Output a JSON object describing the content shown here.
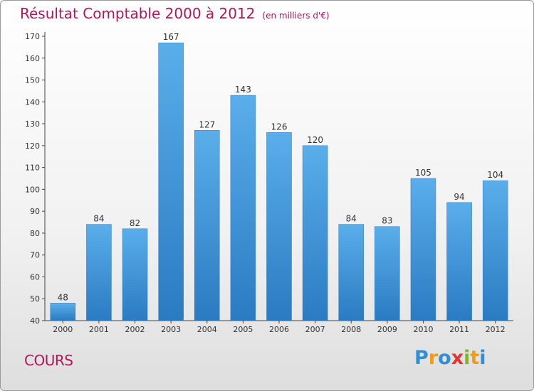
{
  "header": {
    "title": "Résultat Comptable 2000 à 2012",
    "unit": "(en milliers d'€)"
  },
  "footer": {
    "city": "COURS",
    "logo_letters": [
      {
        "ch": "P",
        "color": "#2f8fd8"
      },
      {
        "ch": "r",
        "color": "#f39a1e"
      },
      {
        "ch": "o",
        "color": "#2f8fd8"
      },
      {
        "ch": "x",
        "color": "#e8332d"
      },
      {
        "ch": "i",
        "color": "#7cb928"
      },
      {
        "ch": "t",
        "color": "#f39a1e"
      },
      {
        "ch": "i",
        "color": "#2f8fd8"
      }
    ]
  },
  "colors": {
    "accent": "#b0175a",
    "bar_top": "#5aaeea",
    "bar_bottom": "#2a7bc2"
  },
  "chart_data": {
    "type": "bar",
    "title": "Résultat Comptable 2000 à 2012",
    "subtitle": "(en milliers d'€)",
    "categories": [
      "2000",
      "2001",
      "2002",
      "2003",
      "2004",
      "2005",
      "2006",
      "2007",
      "2008",
      "2009",
      "2010",
      "2011",
      "2012"
    ],
    "values": [
      48,
      84,
      82,
      167,
      127,
      143,
      126,
      120,
      84,
      83,
      105,
      94,
      104
    ],
    "ylim": [
      40,
      170
    ],
    "yticks": [
      40,
      50,
      60,
      70,
      80,
      90,
      100,
      110,
      120,
      130,
      140,
      150,
      160,
      170
    ],
    "grid": false,
    "legend": "none"
  }
}
